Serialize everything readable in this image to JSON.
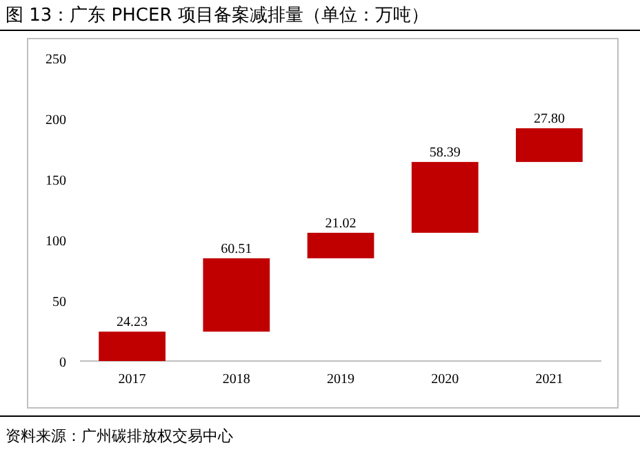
{
  "chart_data": {
    "type": "bar",
    "title": "图 13：广东 PHCER 项目备案减排量（单位：万吨）",
    "categories": [
      "2017",
      "2018",
      "2019",
      "2020",
      "2021"
    ],
    "values": [
      24.23,
      60.51,
      21.02,
      58.39,
      27.8
    ],
    "base": [
      0,
      24.23,
      84.74,
      105.76,
      164.15
    ],
    "value_labels": [
      "24.23",
      "60.51",
      "21.02",
      "58.39",
      "27.80"
    ],
    "color": "#c00000",
    "ylim": [
      0,
      250
    ],
    "yticks": [
      0,
      50,
      100,
      150,
      200,
      250
    ],
    "grid": false,
    "annotations": [
      "资料来源：广州碳排放权交易中心"
    ]
  }
}
